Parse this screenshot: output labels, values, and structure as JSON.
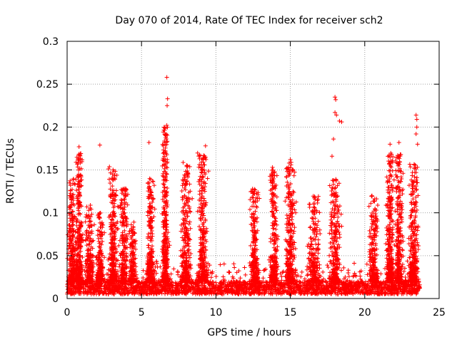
{
  "chart_data": {
    "type": "scatter",
    "title": "Day 070 of 2014, Rate Of TEC Index for receiver sch2",
    "xlabel": "GPS time / hours",
    "ylabel": "ROTI / TECUs",
    "xlim": [
      0,
      25
    ],
    "ylim": [
      0,
      0.3
    ],
    "xticks": [
      0,
      5,
      10,
      15,
      20,
      25
    ],
    "yticks": [
      0,
      0.05,
      0.1,
      0.15,
      0.2,
      0.25,
      0.3
    ],
    "xtick_labels": [
      "0",
      "5",
      "10",
      "15",
      "20",
      "25"
    ],
    "ytick_labels": [
      "0",
      "0.05",
      "0.1",
      "0.15",
      "0.2",
      "0.25",
      "0.3"
    ],
    "grid": true,
    "marker": "+",
    "series": [
      {
        "name": "sch2",
        "color": "#ff0000",
        "x_range": [
          0,
          23.7
        ],
        "baseline_range": [
          0.005,
          0.02
        ],
        "activity_bursts": [
          {
            "x": 0.3,
            "width": 0.35,
            "peak": 0.14
          },
          {
            "x": 0.8,
            "width": 0.35,
            "peak": 0.17
          },
          {
            "x": 1.5,
            "width": 0.4,
            "peak": 0.11
          },
          {
            "x": 2.2,
            "width": 0.35,
            "peak": 0.1
          },
          {
            "x": 3.1,
            "width": 0.4,
            "peak": 0.155
          },
          {
            "x": 3.8,
            "width": 0.35,
            "peak": 0.13
          },
          {
            "x": 4.4,
            "width": 0.35,
            "peak": 0.09
          },
          {
            "x": 5.6,
            "width": 0.35,
            "peak": 0.14
          },
          {
            "x": 6.6,
            "width": 0.3,
            "peak": 0.2
          },
          {
            "x": 8.0,
            "width": 0.45,
            "peak": 0.16
          },
          {
            "x": 9.1,
            "width": 0.45,
            "peak": 0.17
          },
          {
            "x": 12.6,
            "width": 0.4,
            "peak": 0.13
          },
          {
            "x": 13.9,
            "width": 0.35,
            "peak": 0.15
          },
          {
            "x": 15.0,
            "width": 0.45,
            "peak": 0.16
          },
          {
            "x": 16.6,
            "width": 0.6,
            "peak": 0.12
          },
          {
            "x": 18.0,
            "width": 0.5,
            "peak": 0.14
          },
          {
            "x": 20.6,
            "width": 0.4,
            "peak": 0.12
          },
          {
            "x": 21.7,
            "width": 0.35,
            "peak": 0.17
          },
          {
            "x": 22.3,
            "width": 0.35,
            "peak": 0.17
          },
          {
            "x": 23.3,
            "width": 0.45,
            "peak": 0.16
          }
        ],
        "notable_points": [
          {
            "x": 6.7,
            "y": 0.258
          },
          {
            "x": 6.75,
            "y": 0.233
          },
          {
            "x": 6.72,
            "y": 0.225
          },
          {
            "x": 6.7,
            "y": 0.202
          },
          {
            "x": 18.0,
            "y": 0.235
          },
          {
            "x": 18.05,
            "y": 0.232
          },
          {
            "x": 18.0,
            "y": 0.217
          },
          {
            "x": 18.1,
            "y": 0.214
          },
          {
            "x": 18.3,
            "y": 0.207
          },
          {
            "x": 18.45,
            "y": 0.206
          },
          {
            "x": 23.45,
            "y": 0.214
          },
          {
            "x": 23.5,
            "y": 0.209
          },
          {
            "x": 23.5,
            "y": 0.2
          },
          {
            "x": 23.45,
            "y": 0.192
          },
          {
            "x": 23.55,
            "y": 0.18
          },
          {
            "x": 5.5,
            "y": 0.182
          },
          {
            "x": 2.2,
            "y": 0.179
          },
          {
            "x": 0.8,
            "y": 0.177
          },
          {
            "x": 9.3,
            "y": 0.178
          },
          {
            "x": 21.7,
            "y": 0.18
          },
          {
            "x": 22.3,
            "y": 0.182
          },
          {
            "x": 17.9,
            "y": 0.186
          },
          {
            "x": 17.8,
            "y": 0.166
          },
          {
            "x": 15.0,
            "y": 0.162
          },
          {
            "x": 13.8,
            "y": 0.153
          }
        ]
      }
    ]
  }
}
